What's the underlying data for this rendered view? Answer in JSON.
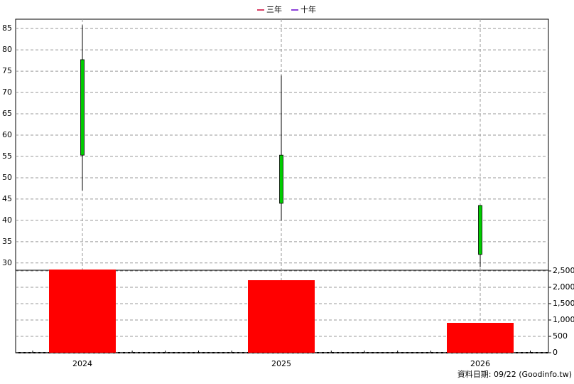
{
  "chart_data": {
    "type": "candlestick",
    "legend": [
      {
        "name": "三年",
        "color": "#cc0033"
      },
      {
        "name": "十年",
        "color": "#6600cc"
      }
    ],
    "categories": [
      "2024",
      "2025",
      "2026"
    ],
    "open": [
      77.7,
      55.3,
      43.5
    ],
    "high": [
      85.8,
      74,
      43.5
    ],
    "low": [
      47,
      40,
      29
    ],
    "close": [
      55.3,
      44,
      32
    ],
    "candle_color": "#00cc00",
    "volume": [
      2543,
      2217,
      913
    ],
    "volume_color": "#ff0000",
    "ylim": [
      28.3,
      87.2
    ],
    "yticks": [
      30,
      35,
      40,
      45,
      50,
      55,
      60,
      65,
      70,
      75,
      80,
      85
    ],
    "y2lim": [
      0,
      2522
    ],
    "y2ticks": [
      0,
      500,
      {
        "value": 1000,
        "label": "1,000"
      },
      {
        "value": 1500,
        "label": "1,500"
      },
      {
        "value": 2000,
        "label": "2,000"
      },
      {
        "value": 2500,
        "label": "2,500"
      }
    ],
    "grid": true,
    "footer": "資料日期: 09/22  (Goodinfo.tw)"
  }
}
